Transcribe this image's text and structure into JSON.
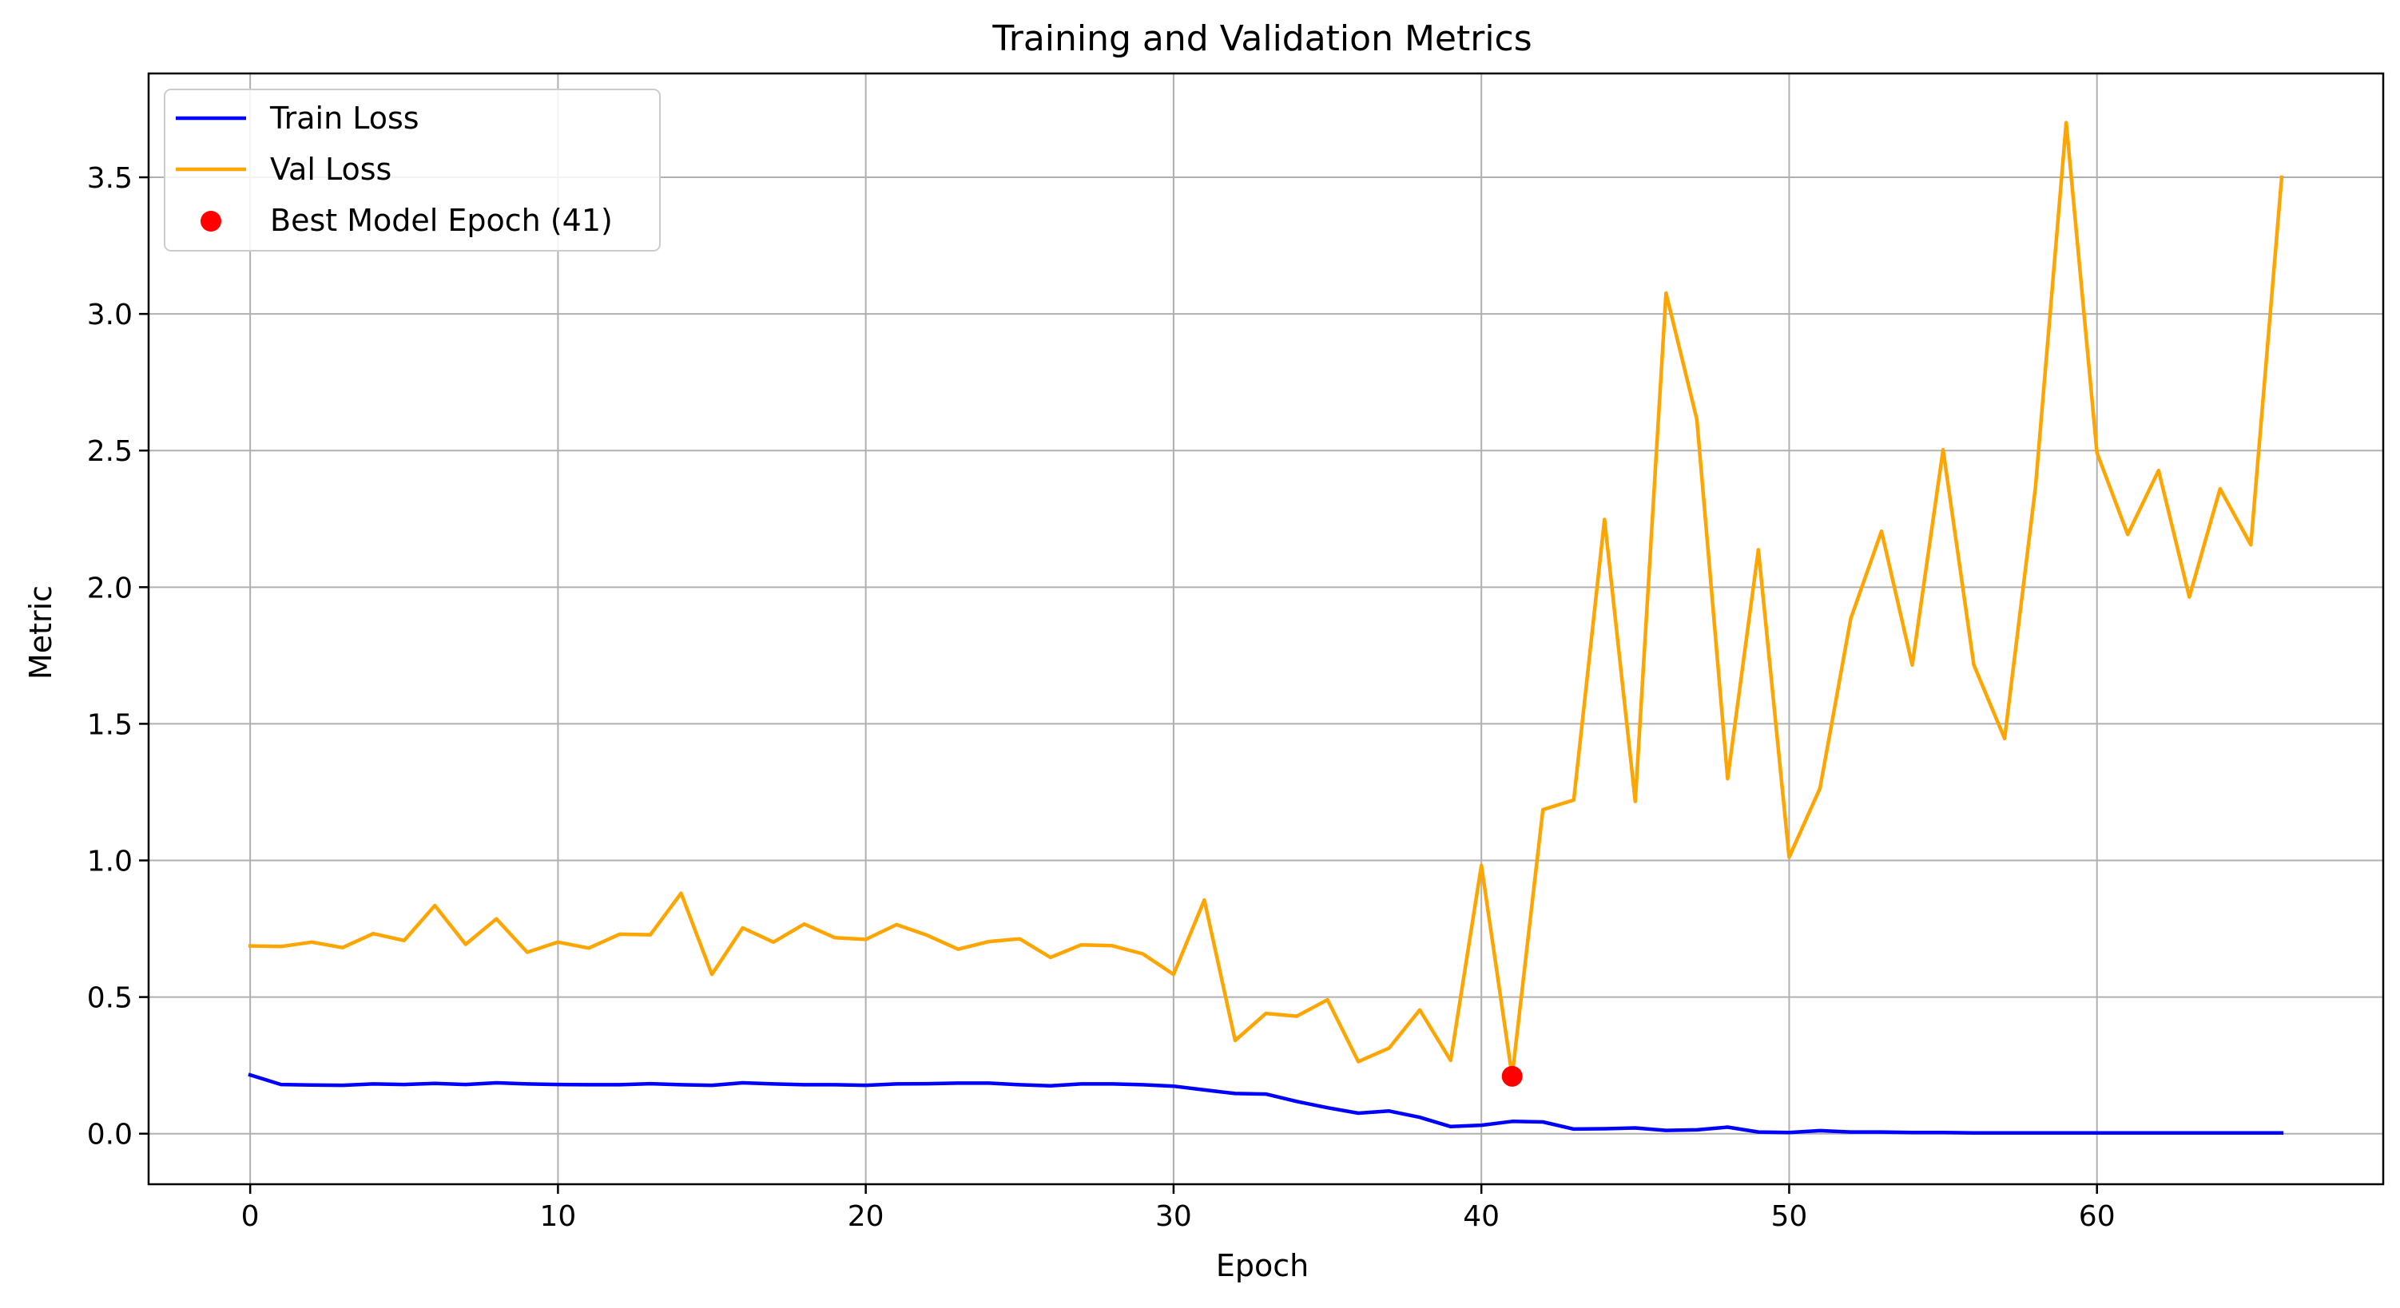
{
  "chart_data": {
    "type": "line",
    "title": "Training and Validation Metrics",
    "xlabel": "Epoch",
    "ylabel": "Metric",
    "xlim": [
      -3.3,
      69.3
    ],
    "ylim": [
      -0.185,
      3.88
    ],
    "xticks": [
      0,
      10,
      20,
      30,
      40,
      50,
      60
    ],
    "yticks": [
      0.0,
      0.5,
      1.0,
      1.5,
      2.0,
      2.5,
      3.0,
      3.5
    ],
    "xtick_labels": [
      "0",
      "10",
      "20",
      "30",
      "40",
      "50",
      "60"
    ],
    "ytick_labels": [
      "0.0",
      "0.5",
      "1.0",
      "1.5",
      "2.0",
      "2.5",
      "3.0",
      "3.5"
    ],
    "grid": true,
    "legend_position": "top-left",
    "x": [
      0,
      1,
      2,
      3,
      4,
      5,
      6,
      7,
      8,
      9,
      10,
      11,
      12,
      13,
      14,
      15,
      16,
      17,
      18,
      19,
      20,
      21,
      22,
      23,
      24,
      25,
      26,
      27,
      28,
      29,
      30,
      31,
      32,
      33,
      34,
      35,
      36,
      37,
      38,
      39,
      40,
      41,
      42,
      43,
      44,
      45,
      46,
      47,
      48,
      49,
      50,
      51,
      52,
      53,
      54,
      55,
      56,
      57,
      58,
      59,
      60,
      61,
      62,
      63,
      64,
      65,
      66
    ],
    "series": [
      {
        "name": "Train Loss",
        "color": "#0000ff",
        "values": [
          0.215,
          0.18,
          0.178,
          0.177,
          0.182,
          0.18,
          0.184,
          0.18,
          0.186,
          0.182,
          0.18,
          0.179,
          0.179,
          0.183,
          0.179,
          0.177,
          0.186,
          0.182,
          0.179,
          0.179,
          0.177,
          0.182,
          0.183,
          0.185,
          0.185,
          0.179,
          0.175,
          0.182,
          0.182,
          0.179,
          0.174,
          0.16,
          0.147,
          0.145,
          0.118,
          0.095,
          0.075,
          0.083,
          0.06,
          0.026,
          0.031,
          0.045,
          0.043,
          0.017,
          0.018,
          0.021,
          0.012,
          0.014,
          0.024,
          0.006,
          0.004,
          0.011,
          0.006,
          0.006,
          0.004,
          0.004,
          0.003,
          0.003,
          0.003,
          0.003,
          0.003,
          0.003,
          0.003,
          0.003,
          0.003,
          0.003,
          0.003
        ]
      },
      {
        "name": "Val Loss",
        "color": "#ffa500",
        "values": [
          0.687,
          0.685,
          0.701,
          0.681,
          0.732,
          0.707,
          0.835,
          0.693,
          0.786,
          0.664,
          0.701,
          0.679,
          0.73,
          0.728,
          0.88,
          0.583,
          0.753,
          0.701,
          0.767,
          0.717,
          0.711,
          0.765,
          0.726,
          0.675,
          0.703,
          0.713,
          0.645,
          0.691,
          0.688,
          0.658,
          0.583,
          0.855,
          0.341,
          0.44,
          0.43,
          0.49,
          0.264,
          0.313,
          0.453,
          0.268,
          0.982,
          0.21,
          1.186,
          1.221,
          2.248,
          1.216,
          3.076,
          2.614,
          1.299,
          2.137,
          1.012,
          1.264,
          1.885,
          2.205,
          1.715,
          2.503,
          1.715,
          1.446,
          2.365,
          3.7,
          2.492,
          2.193,
          2.427,
          1.964,
          2.36,
          2.155,
          3.5
        ]
      }
    ],
    "best_point": {
      "name": "Best Model Epoch (41)",
      "x": 41,
      "y": 0.21,
      "color": "#ff0000"
    }
  }
}
